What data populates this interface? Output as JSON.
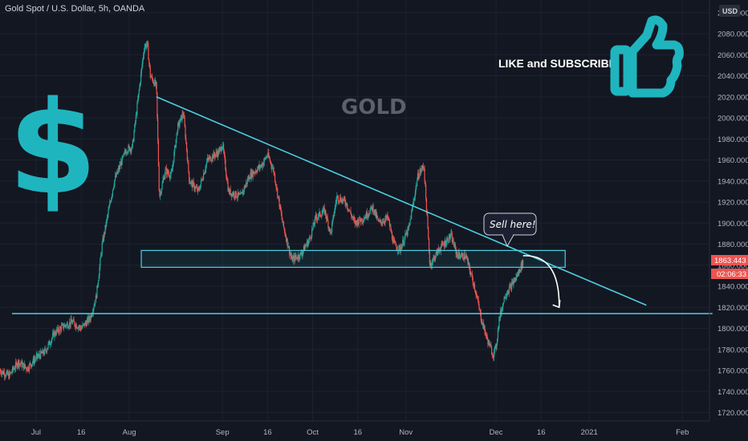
{
  "header": {
    "title": "Gold Spot / U.S. Dollar, 5h, OANDA",
    "currency_button": "USD"
  },
  "annotations": {
    "watermark": "GOLD",
    "cta": "LIKE and SUBSCRIBE",
    "callout": "Sell here!",
    "dollar_sign": "$"
  },
  "price_tags": {
    "last_price": "1863.443",
    "countdown": "02:06:33"
  },
  "colors": {
    "background": "#131722",
    "up": "#26a69a",
    "down": "#ef5350",
    "accent": "#26c6da",
    "drawing": "#4dd0e1",
    "tag": "#ef5350"
  },
  "chart_data": {
    "type": "candlestick",
    "title": "Gold Spot / U.S. Dollar, 5h, OANDA",
    "x_ticks": [
      {
        "label": "Jul",
        "date": "2020-07-01"
      },
      {
        "label": "16",
        "date": "2020-07-16"
      },
      {
        "label": "Aug",
        "date": "2020-08-01"
      },
      {
        "label": "Sep",
        "date": "2020-09-01"
      },
      {
        "label": "16",
        "date": "2020-09-16"
      },
      {
        "label": "Oct",
        "date": "2020-10-01"
      },
      {
        "label": "16",
        "date": "2020-10-16"
      },
      {
        "label": "Nov",
        "date": "2020-11-01"
      },
      {
        "label": "Dec",
        "date": "2020-12-01"
      },
      {
        "label": "16",
        "date": "2020-12-16"
      },
      {
        "label": "2021",
        "date": "2021-01-01"
      },
      {
        "label": "Feb",
        "date": "2021-02-01"
      }
    ],
    "y_ticks": [
      1720,
      1740,
      1760,
      1780,
      1800,
      1820,
      1840,
      1860,
      1880,
      1900,
      1920,
      1940,
      1960,
      1980,
      2000,
      2020,
      2040,
      2060,
      2080,
      2100
    ],
    "y_tick_labels": [
      "1720.000",
      "1740.000",
      "1760.000",
      "1780.000",
      "1800.000",
      "1820.000",
      "1840.000",
      "1860.000",
      "1880.000",
      "1900.000",
      "1920.000",
      "1940.000",
      "1960.000",
      "1980.000",
      "2000.000",
      "2020.000",
      "2040.000",
      "2060.000",
      "2080.000",
      "2100.000"
    ],
    "ylim": [
      1712,
      2112
    ],
    "xlim": [
      "2020-06-19",
      "2021-02-10"
    ],
    "last_price": 1863.443,
    "price_path": [
      [
        "2020-06-19",
        1760
      ],
      [
        "2020-06-22",
        1755
      ],
      [
        "2020-06-25",
        1768
      ],
      [
        "2020-06-28",
        1762
      ],
      [
        "2020-07-01",
        1772
      ],
      [
        "2020-07-04",
        1778
      ],
      [
        "2020-07-07",
        1795
      ],
      [
        "2020-07-10",
        1802
      ],
      [
        "2020-07-13",
        1806
      ],
      [
        "2020-07-16",
        1800
      ],
      [
        "2020-07-19",
        1810
      ],
      [
        "2020-07-21",
        1830
      ],
      [
        "2020-07-23",
        1880
      ],
      [
        "2020-07-25",
        1910
      ],
      [
        "2020-07-27",
        1940
      ],
      [
        "2020-07-29",
        1955
      ],
      [
        "2020-07-31",
        1970
      ],
      [
        "2020-08-02",
        1972
      ],
      [
        "2020-08-04",
        2020
      ],
      [
        "2020-08-06",
        2068
      ],
      [
        "2020-08-07",
        2070
      ],
      [
        "2020-08-08",
        2040
      ],
      [
        "2020-08-10",
        2030
      ],
      [
        "2020-08-11",
        1925
      ],
      [
        "2020-08-13",
        1950
      ],
      [
        "2020-08-15",
        1945
      ],
      [
        "2020-08-17",
        1990
      ],
      [
        "2020-08-19",
        2005
      ],
      [
        "2020-08-21",
        1940
      ],
      [
        "2020-08-24",
        1930
      ],
      [
        "2020-08-27",
        1960
      ],
      [
        "2020-08-31",
        1968
      ],
      [
        "2020-09-01",
        1975
      ],
      [
        "2020-09-03",
        1930
      ],
      [
        "2020-09-07",
        1925
      ],
      [
        "2020-09-10",
        1945
      ],
      [
        "2020-09-14",
        1955
      ],
      [
        "2020-09-16",
        1965
      ],
      [
        "2020-09-18",
        1950
      ],
      [
        "2020-09-21",
        1900
      ],
      [
        "2020-09-24",
        1865
      ],
      [
        "2020-09-27",
        1870
      ],
      [
        "2020-09-30",
        1885
      ],
      [
        "2020-10-02",
        1905
      ],
      [
        "2020-10-05",
        1912
      ],
      [
        "2020-10-07",
        1890
      ],
      [
        "2020-10-09",
        1925
      ],
      [
        "2020-10-12",
        1920
      ],
      [
        "2020-10-15",
        1900
      ],
      [
        "2020-10-18",
        1905
      ],
      [
        "2020-10-21",
        1915
      ],
      [
        "2020-10-23",
        1900
      ],
      [
        "2020-10-26",
        1905
      ],
      [
        "2020-10-28",
        1880
      ],
      [
        "2020-10-30",
        1875
      ],
      [
        "2020-11-02",
        1895
      ],
      [
        "2020-11-05",
        1945
      ],
      [
        "2020-11-07",
        1955
      ],
      [
        "2020-11-09",
        1860
      ],
      [
        "2020-11-12",
        1875
      ],
      [
        "2020-11-16",
        1888
      ],
      [
        "2020-11-18",
        1870
      ],
      [
        "2020-11-21",
        1868
      ],
      [
        "2020-11-24",
        1838
      ],
      [
        "2020-11-26",
        1810
      ],
      [
        "2020-11-28",
        1790
      ],
      [
        "2020-11-30",
        1775
      ],
      [
        "2020-12-01",
        1782
      ],
      [
        "2020-12-02",
        1808
      ],
      [
        "2020-12-04",
        1832
      ],
      [
        "2020-12-06",
        1840
      ],
      [
        "2020-12-08",
        1850
      ],
      [
        "2020-12-10",
        1863.443
      ]
    ],
    "drawings": {
      "descending_trendline": {
        "start": [
          "2020-08-10",
          2020
        ],
        "end": [
          "2021-01-20",
          1822
        ]
      },
      "support_line": {
        "start": [
          "2020-06-23",
          1814
        ],
        "end": [
          "2021-02-11",
          1814
        ]
      },
      "resistance_zone": {
        "start": "2020-08-05",
        "end": "2020-12-24",
        "y_low": 1858,
        "y_high": 1874
      },
      "projection_arrow": {
        "start": [
          "2020-12-10",
          1869
        ],
        "end": [
          "2020-12-22",
          1820
        ]
      }
    }
  }
}
